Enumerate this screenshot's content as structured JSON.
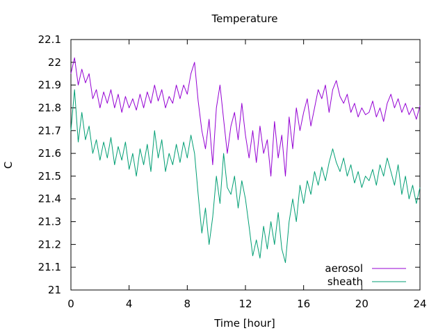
{
  "chart_data": {
    "type": "line",
    "title": "Temperature",
    "xlabel": "Time [hour]",
    "ylabel": "C",
    "xlim": [
      0,
      24
    ],
    "ylim": [
      21,
      22.1
    ],
    "xticks": [
      0,
      4,
      8,
      12,
      16,
      20,
      24
    ],
    "xtick_labels": [
      "0",
      "4",
      "8",
      "12",
      "16",
      "20",
      "24"
    ],
    "yticks": [
      21,
      21.1,
      21.2,
      21.3,
      21.4,
      21.5,
      21.6,
      21.7,
      21.8,
      21.9,
      22,
      22.1
    ],
    "ytick_labels": [
      "21",
      "21.1",
      "21.2",
      "21.3",
      "21.4",
      "21.5",
      "21.6",
      "21.7",
      "21.8",
      "21.9",
      "22",
      "22.1"
    ],
    "grid": false,
    "legend_position": "bottom-right",
    "series": [
      {
        "name": "aerosol",
        "color": "#9400d3",
        "x": [
          0,
          0.25,
          0.5,
          0.75,
          1,
          1.25,
          1.5,
          1.75,
          2,
          2.25,
          2.5,
          2.75,
          3,
          3.25,
          3.5,
          3.75,
          4,
          4.25,
          4.5,
          4.75,
          5,
          5.25,
          5.5,
          5.75,
          6,
          6.25,
          6.5,
          6.75,
          7,
          7.25,
          7.5,
          7.75,
          8,
          8.25,
          8.5,
          8.75,
          9,
          9.25,
          9.5,
          9.75,
          10,
          10.25,
          10.5,
          10.75,
          11,
          11.25,
          11.5,
          11.75,
          12,
          12.25,
          12.5,
          12.75,
          13,
          13.25,
          13.5,
          13.75,
          14,
          14.25,
          14.5,
          14.75,
          15,
          15.25,
          15.5,
          15.75,
          16,
          16.25,
          16.5,
          16.75,
          17,
          17.25,
          17.5,
          17.75,
          18,
          18.25,
          18.5,
          18.75,
          19,
          19.25,
          19.5,
          19.75,
          20,
          20.25,
          20.5,
          20.75,
          21,
          21.25,
          21.5,
          21.75,
          22,
          22.25,
          22.5,
          22.75,
          23,
          23.25,
          23.5,
          23.75,
          24
        ],
        "y": [
          21.95,
          22.02,
          21.9,
          21.97,
          21.91,
          21.95,
          21.84,
          21.88,
          21.8,
          21.87,
          21.82,
          21.88,
          21.8,
          21.86,
          21.78,
          21.85,
          21.8,
          21.84,
          21.79,
          21.86,
          21.8,
          21.87,
          21.82,
          21.9,
          21.83,
          21.88,
          21.8,
          21.85,
          21.82,
          21.9,
          21.84,
          21.9,
          21.86,
          21.95,
          22.0,
          21.83,
          21.7,
          21.62,
          21.75,
          21.55,
          21.8,
          21.9,
          21.75,
          21.6,
          21.72,
          21.78,
          21.66,
          21.82,
          21.68,
          21.58,
          21.7,
          21.56,
          21.72,
          21.6,
          21.66,
          21.5,
          21.74,
          21.58,
          21.68,
          21.5,
          21.76,
          21.62,
          21.8,
          21.7,
          21.78,
          21.84,
          21.72,
          21.8,
          21.88,
          21.84,
          21.9,
          21.78,
          21.88,
          21.92,
          21.85,
          21.82,
          21.86,
          21.78,
          21.82,
          21.76,
          21.8,
          21.77,
          21.78,
          21.83,
          21.76,
          21.8,
          21.74,
          21.82,
          21.86,
          21.8,
          21.84,
          21.78,
          21.82,
          21.77,
          21.8,
          21.75,
          21.81
        ]
      },
      {
        "name": "sheath",
        "color": "#009e73",
        "x": [
          0,
          0.25,
          0.5,
          0.75,
          1,
          1.25,
          1.5,
          1.75,
          2,
          2.25,
          2.5,
          2.75,
          3,
          3.25,
          3.5,
          3.75,
          4,
          4.25,
          4.5,
          4.75,
          5,
          5.25,
          5.5,
          5.75,
          6,
          6.25,
          6.5,
          6.75,
          7,
          7.25,
          7.5,
          7.75,
          8,
          8.25,
          8.5,
          8.75,
          9,
          9.25,
          9.5,
          9.75,
          10,
          10.25,
          10.5,
          10.75,
          11,
          11.25,
          11.5,
          11.75,
          12,
          12.25,
          12.5,
          12.75,
          13,
          13.25,
          13.5,
          13.75,
          14,
          14.25,
          14.5,
          14.75,
          15,
          15.25,
          15.5,
          15.75,
          16,
          16.25,
          16.5,
          16.75,
          17,
          17.25,
          17.5,
          17.75,
          18,
          18.25,
          18.5,
          18.75,
          19,
          19.25,
          19.5,
          19.75,
          20,
          20.25,
          20.5,
          20.75,
          21,
          21.25,
          21.5,
          21.75,
          22,
          22.25,
          22.5,
          22.75,
          23,
          23.25,
          23.5,
          23.75,
          24
        ],
        "y": [
          21.7,
          21.88,
          21.65,
          21.78,
          21.66,
          21.72,
          21.6,
          21.66,
          21.57,
          21.65,
          21.58,
          21.67,
          21.55,
          21.63,
          21.57,
          21.65,
          21.53,
          21.6,
          21.5,
          21.62,
          21.55,
          21.64,
          21.52,
          21.7,
          21.58,
          21.66,
          21.52,
          21.6,
          21.55,
          21.64,
          21.56,
          21.65,
          21.58,
          21.68,
          21.6,
          21.42,
          21.25,
          21.36,
          21.2,
          21.32,
          21.5,
          21.38,
          21.6,
          21.45,
          21.42,
          21.5,
          21.36,
          21.48,
          21.4,
          21.28,
          21.15,
          21.22,
          21.14,
          21.28,
          21.18,
          21.3,
          21.2,
          21.34,
          21.18,
          21.12,
          21.3,
          21.4,
          21.3,
          21.46,
          21.38,
          21.48,
          21.42,
          21.52,
          21.46,
          21.54,
          21.48,
          21.56,
          21.62,
          21.56,
          21.52,
          21.58,
          21.5,
          21.55,
          21.47,
          21.52,
          21.45,
          21.5,
          21.48,
          21.53,
          21.46,
          21.55,
          21.5,
          21.58,
          21.52,
          21.46,
          21.55,
          21.42,
          21.5,
          21.4,
          21.46,
          21.38,
          21.45
        ]
      }
    ]
  }
}
